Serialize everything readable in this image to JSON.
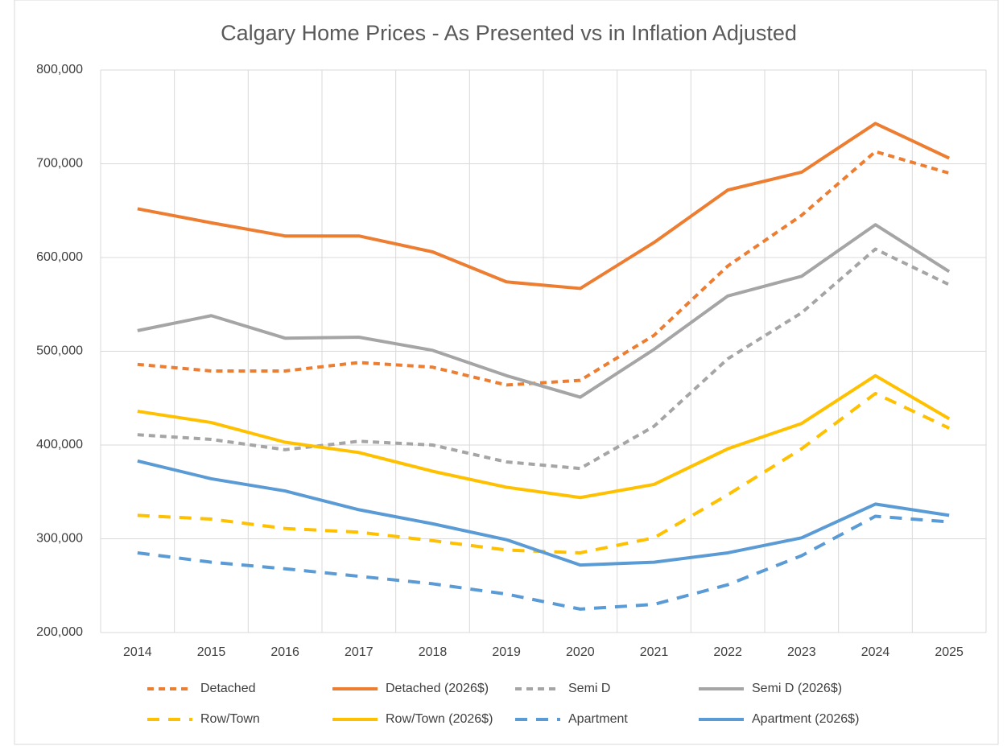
{
  "chart_data": {
    "type": "line",
    "title": "Calgary Home Prices - As Presented vs in Inflation Adjusted",
    "categories": [
      "2014",
      "2015",
      "2016",
      "2017",
      "2018",
      "2019",
      "2020",
      "2021",
      "2022",
      "2023",
      "2024",
      "2025"
    ],
    "series": [
      {
        "name": "Detached",
        "color": "#ed7d31",
        "line_style": "dashed",
        "values": [
          486000,
          479000,
          479000,
          488000,
          483000,
          464000,
          469000,
          517000,
          591000,
          645000,
          713000,
          690000
        ]
      },
      {
        "name": "Detached (2026$)",
        "color": "#ed7d31",
        "line_style": "solid",
        "values": [
          652000,
          637000,
          623000,
          623000,
          606000,
          574000,
          567000,
          616000,
          672000,
          691000,
          743000,
          706000
        ]
      },
      {
        "name": "Semi D",
        "color": "#a5a5a5",
        "line_style": "dashed",
        "values": [
          411000,
          406000,
          395000,
          404000,
          400000,
          382000,
          375000,
          420000,
          492000,
          541000,
          609000,
          571000
        ]
      },
      {
        "name": "Semi D (2026$)",
        "color": "#a5a5a5",
        "line_style": "solid",
        "values": [
          522000,
          538000,
          514000,
          515000,
          501000,
          474000,
          451000,
          502000,
          559000,
          580000,
          635000,
          585000
        ]
      },
      {
        "name": "Row/Town",
        "color": "#ffc000",
        "line_style": "long-dashed",
        "values": [
          325000,
          321000,
          311000,
          307000,
          298000,
          288000,
          285000,
          301000,
          347000,
          396000,
          455000,
          418000
        ]
      },
      {
        "name": "Row/Town (2026$)",
        "color": "#ffc000",
        "line_style": "solid",
        "values": [
          436000,
          424000,
          403000,
          392000,
          372000,
          355000,
          344000,
          358000,
          396000,
          423000,
          474000,
          428000
        ]
      },
      {
        "name": "Apartment",
        "color": "#5b9bd5",
        "line_style": "long-dashed",
        "values": [
          285000,
          275000,
          268000,
          260000,
          252000,
          241000,
          225000,
          230000,
          251000,
          282000,
          324000,
          318000
        ]
      },
      {
        "name": "Apartment (2026$)",
        "color": "#5b9bd5",
        "line_style": "solid",
        "values": [
          383000,
          364000,
          351000,
          331000,
          316000,
          299000,
          272000,
          275000,
          285000,
          301000,
          337000,
          325000
        ]
      }
    ],
    "ylim": [
      200000,
      800000
    ],
    "yticks": [
      {
        "value": 200000,
        "label": "200,000"
      },
      {
        "value": 300000,
        "label": "300,000"
      },
      {
        "value": 400000,
        "label": "400,000"
      },
      {
        "value": 500000,
        "label": "500,000"
      },
      {
        "value": 600000,
        "label": "600,000"
      },
      {
        "value": 700000,
        "label": "700,000"
      },
      {
        "value": 800000,
        "label": "800,000"
      }
    ],
    "grid": true,
    "legend": "bottom"
  }
}
